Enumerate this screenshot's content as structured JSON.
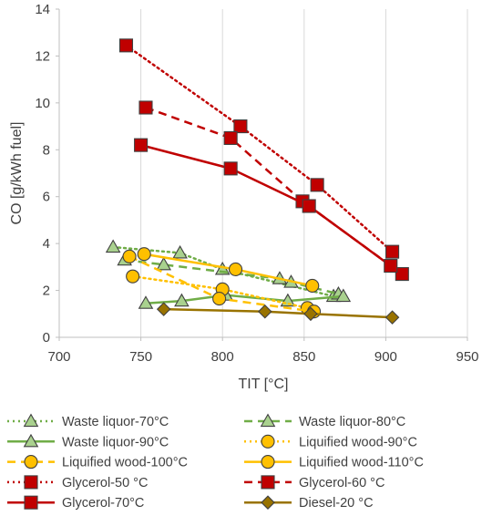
{
  "chart_data": {
    "type": "line",
    "xlabel": "TIT [°C]",
    "ylabel": "CO [g/kWh fuel]",
    "xlim": [
      700,
      950
    ],
    "ylim": [
      0,
      14
    ],
    "xticks": [
      700,
      750,
      800,
      850,
      900,
      950
    ],
    "yticks": [
      0,
      2,
      4,
      6,
      8,
      10,
      12,
      14
    ],
    "grid": "vertical",
    "legend_position": "bottom",
    "series": [
      {
        "name": "Waste liquor-70°C",
        "color": "#70AD47",
        "marker": "triangle",
        "dash": "dot",
        "points": [
          [
            733,
            3.85
          ],
          [
            774,
            3.6
          ],
          [
            800,
            2.9
          ],
          [
            868,
            1.75
          ]
        ]
      },
      {
        "name": "Waste liquor-80°C",
        "color": "#70AD47",
        "marker": "triangle",
        "dash": "dash",
        "points": [
          [
            740,
            3.3
          ],
          [
            764,
            3.1
          ],
          [
            835,
            2.5
          ],
          [
            842,
            2.35
          ],
          [
            871,
            1.85
          ]
        ]
      },
      {
        "name": "Waste liquor-90°C",
        "color": "#70AD47",
        "marker": "triangle",
        "dash": "solid",
        "points": [
          [
            753,
            1.45
          ],
          [
            775,
            1.55
          ],
          [
            802,
            1.8
          ],
          [
            840,
            1.55
          ],
          [
            874,
            1.75
          ]
        ]
      },
      {
        "name": "Liquified wood-90°C",
        "color": "#FFC000",
        "marker": "circle",
        "dash": "dot",
        "points": [
          [
            745,
            2.6
          ],
          [
            800,
            2.05
          ],
          [
            852,
            1.25
          ]
        ]
      },
      {
        "name": "Liquified wood-100°C",
        "color": "#FFC000",
        "marker": "circle",
        "dash": "dash",
        "points": [
          [
            743,
            3.45
          ],
          [
            798,
            1.65
          ],
          [
            856,
            1.1
          ]
        ]
      },
      {
        "name": "Liquified wood-110°C",
        "color": "#FFC000",
        "marker": "circle",
        "dash": "solid",
        "points": [
          [
            752,
            3.55
          ],
          [
            808,
            2.9
          ],
          [
            855,
            2.2
          ]
        ]
      },
      {
        "name": "Glycerol-50 °C",
        "color": "#C00000",
        "marker": "square",
        "dash": "dot",
        "points": [
          [
            741,
            12.45
          ],
          [
            811,
            9.0
          ],
          [
            858,
            6.5
          ],
          [
            904,
            3.65
          ]
        ]
      },
      {
        "name": "Glycerol-60 °C",
        "color": "#C00000",
        "marker": "square",
        "dash": "dash",
        "points": [
          [
            753,
            9.8
          ],
          [
            805,
            8.5
          ],
          [
            849,
            5.8
          ],
          [
            910,
            2.7
          ]
        ]
      },
      {
        "name": "Glycerol-70°C",
        "color": "#C00000",
        "marker": "square",
        "dash": "solid",
        "points": [
          [
            750,
            8.2
          ],
          [
            805,
            7.2
          ],
          [
            853,
            5.6
          ],
          [
            903,
            3.05
          ]
        ]
      },
      {
        "name": "Diesel-20 °C",
        "color": "#997300",
        "marker": "diamond",
        "dash": "solid",
        "points": [
          [
            764,
            1.2
          ],
          [
            826,
            1.1
          ],
          [
            854,
            1.0
          ],
          [
            904,
            0.85
          ]
        ]
      }
    ]
  }
}
